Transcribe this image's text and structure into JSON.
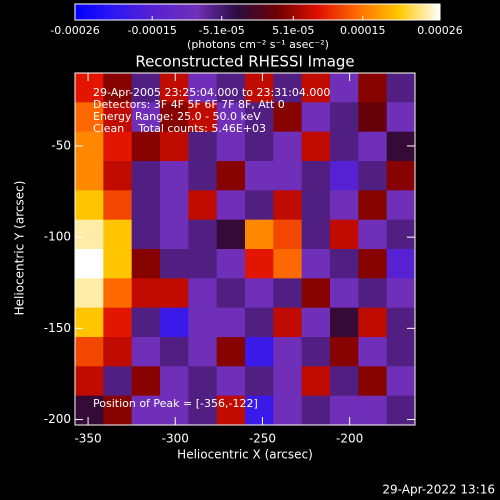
{
  "chart_data": {
    "type": "heatmap",
    "title": "Reconstructed RHESSI Image",
    "xlabel": "Heliocentric X (arcsec)",
    "ylabel": "Heliocentric Y (arcsec)",
    "colorbar_label": "(photons cm⁻² s⁻¹ asec⁻²)",
    "annotations": [
      "29-Apr-2005 23:25:04.000 to 23:31:04.000",
      "Detectors: 3F 4F 5F 6F 7F 8F, Att 0",
      "Energy Range: 25.0 - 50.0 keV",
      "Clean    Total counts: 5.46E+03",
      "Position of Peak = [-356,-122]"
    ],
    "footer": "29-Apr-2022 13:16",
    "xlim": [
      -357.5,
      -162.5
    ],
    "ylim": [
      -203,
      -10
    ],
    "xticks": [
      -350,
      -300,
      -250,
      -200
    ],
    "yticks": [
      -50,
      -100,
      -150,
      -200
    ],
    "zlim": [
      -0.00026,
      0.00026
    ],
    "zticks": [
      -0.00026,
      -0.00015,
      {
        "value": -5.1e-05,
        "label": "-5.1e-05"
      },
      {
        "value": 5.1e-05,
        "label": "5.1e-05"
      },
      0.00015,
      0.00026
    ],
    "colormap": [
      "#0000ff",
      "#3018f0",
      "#5a22d0",
      "#7030b8",
      "#2a0c40",
      "#700000",
      "#e01000",
      "#ff7000",
      "#ffc800",
      "#ffffff"
    ],
    "z": [
      [
        9e-05,
        4e-05,
        -6e-05,
        7e-05,
        -9e-05,
        -6e-05,
        7e-05,
        -6e-05,
        7e-05,
        -9e-05,
        4e-05,
        -6e-05
      ],
      [
        0.00014,
        7e-05,
        -9e-05,
        4e-05,
        7e-05,
        -9e-05,
        -6e-05,
        4e-05,
        -9e-05,
        -6e-05,
        2e-05,
        -9e-05
      ],
      [
        0.00016,
        9e-05,
        4e-05,
        7e-05,
        -6e-05,
        -9e-05,
        -6e-05,
        -9e-05,
        7e-05,
        -6e-05,
        -9e-05,
        -2e-05
      ],
      [
        0.00016,
        7e-05,
        -6e-05,
        -9e-05,
        -6e-05,
        4e-05,
        -9e-05,
        -9e-05,
        -6e-05,
        -0.00015,
        -6e-05,
        4e-05
      ],
      [
        0.0002,
        0.00012,
        -6e-05,
        -9e-05,
        7e-05,
        -9e-05,
        -6e-05,
        7e-05,
        -6e-05,
        -9e-05,
        4e-05,
        -9e-05
      ],
      [
        0.00024,
        0.0002,
        -6e-05,
        -9e-05,
        -6e-05,
        -2e-05,
        0.00016,
        0.00012,
        -6e-05,
        7e-05,
        -9e-05,
        -6e-05
      ],
      [
        0.00026,
        0.0002,
        4e-05,
        -6e-05,
        -6e-05,
        -9e-05,
        9e-05,
        0.00014,
        -9e-05,
        -6e-05,
        4e-05,
        -0.00015
      ],
      [
        0.00024,
        0.00014,
        7e-05,
        7e-05,
        -9e-05,
        -6e-05,
        -9e-05,
        -6e-05,
        4e-05,
        -9e-05,
        -6e-05,
        -9e-05
      ],
      [
        0.0002,
        9e-05,
        -6e-05,
        -0.00019,
        -9e-05,
        -9e-05,
        -6e-05,
        7e-05,
        -9e-05,
        -2e-05,
        7e-05,
        -6e-05
      ],
      [
        0.00012,
        7e-05,
        -9e-05,
        -6e-05,
        -9e-05,
        4e-05,
        -0.00019,
        -9e-05,
        -6e-05,
        4e-05,
        -9e-05,
        -6e-05
      ],
      [
        7e-05,
        -6e-05,
        4e-05,
        -9e-05,
        -6e-05,
        -9e-05,
        -6e-05,
        -9e-05,
        7e-05,
        -6e-05,
        4e-05,
        -9e-05
      ],
      [
        -2e-05,
        4e-05,
        -9e-05,
        -9e-05,
        -6e-05,
        7e-05,
        -0.00019,
        -9e-05,
        -6e-05,
        -9e-05,
        -9e-05,
        -6e-05
      ]
    ]
  }
}
